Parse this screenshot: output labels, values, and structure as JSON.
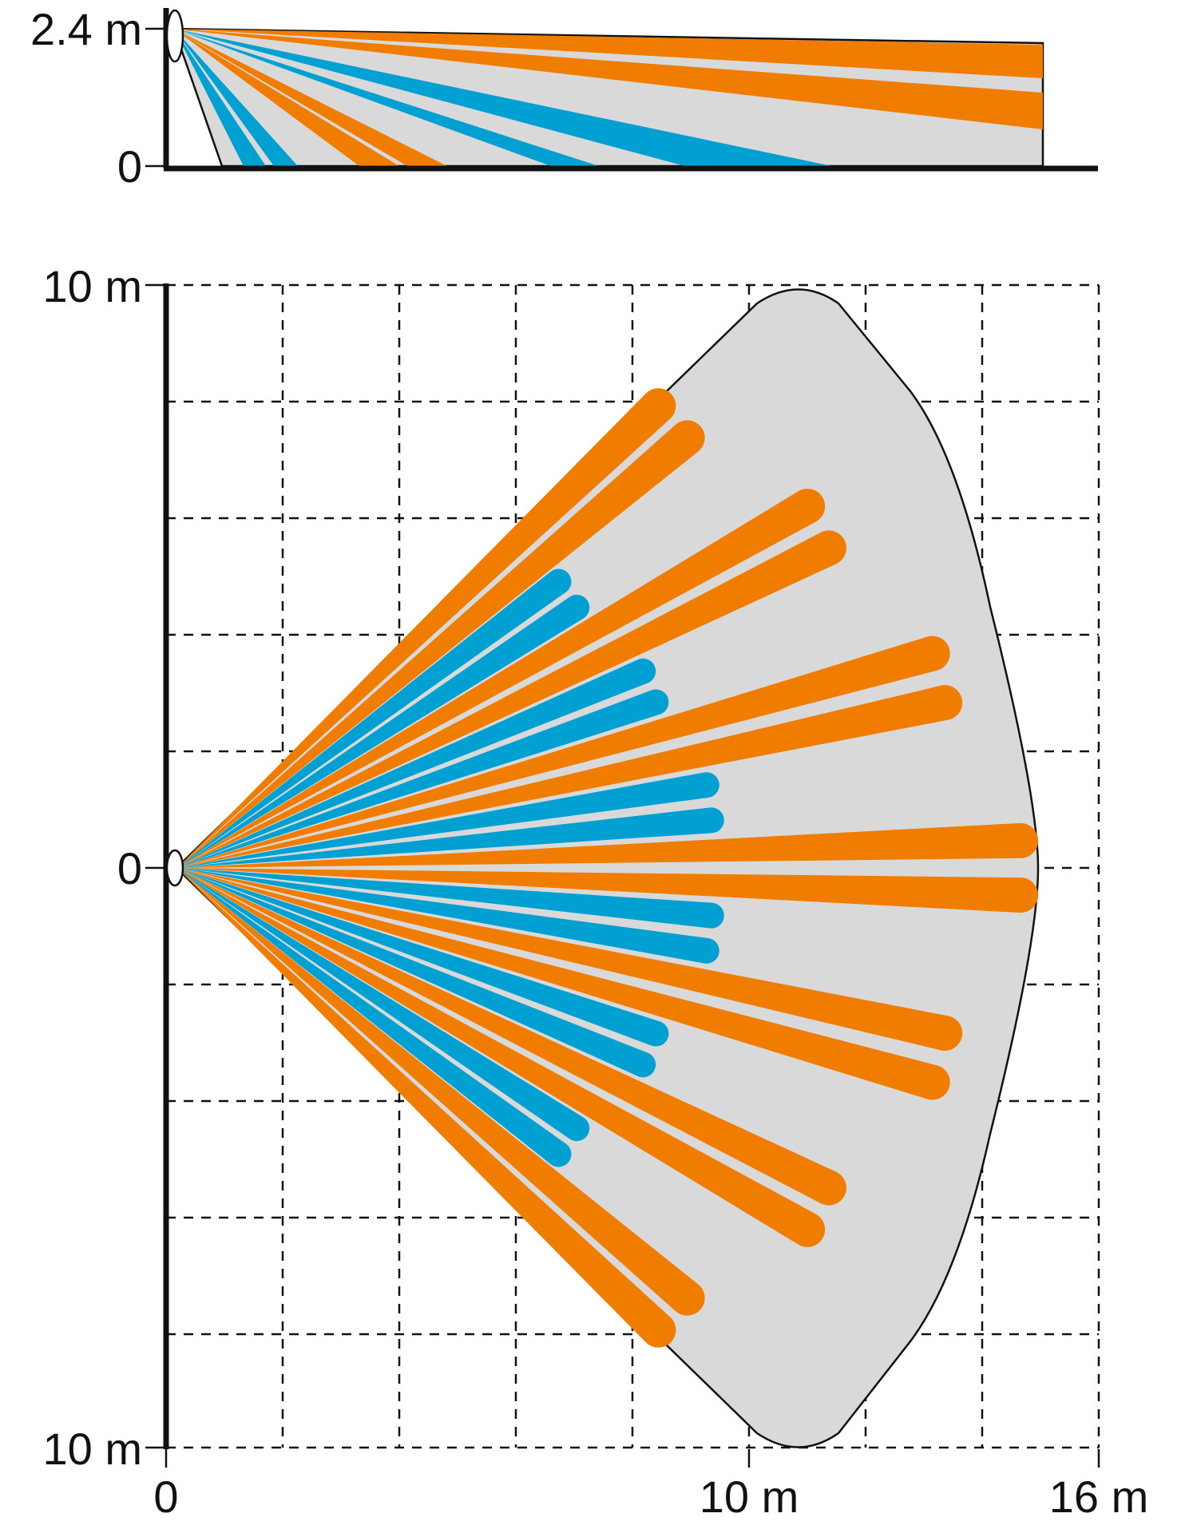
{
  "side_view": {
    "y_labels": {
      "top": "2.4 m",
      "bottom": "0"
    },
    "colors": {
      "long": "#f07c00",
      "short": "#00a0d2",
      "zone": "#d9d9d9"
    }
  },
  "top_view": {
    "y_labels": {
      "top": "10 m",
      "middle": "0",
      "bottom": "10 m"
    },
    "x_labels": {
      "origin": "0",
      "mid": "10 m",
      "end": "16 m"
    },
    "long_beam_angles_deg": [
      -42,
      -28,
      -14,
      0,
      14,
      28,
      42
    ],
    "short_beam_angles_deg": [
      -35,
      -21,
      -7,
      7,
      21,
      35
    ],
    "colors": {
      "long": "#f07c00",
      "short": "#00a0d2",
      "zone": "#d9d9d9"
    }
  }
}
